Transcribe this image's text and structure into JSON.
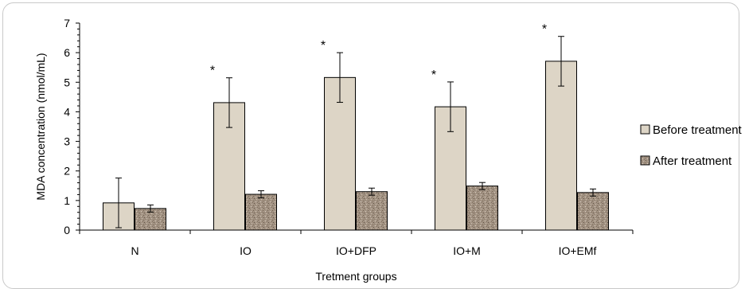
{
  "chart_data": {
    "type": "bar",
    "xlabel": "Tretment groups",
    "ylabel": "MDA concentration (nmol/mL)",
    "ylim": [
      0,
      7
    ],
    "yticks": [
      0,
      1,
      2,
      3,
      4,
      5,
      6,
      7
    ],
    "categories": [
      "N",
      "IO",
      "IO+DFP",
      "IO+M",
      "IO+EMf"
    ],
    "series": [
      {
        "name": "Before treatment",
        "color": "#ddd5c6",
        "values": [
          0.92,
          4.31,
          5.16,
          4.17,
          5.71
        ],
        "errors": [
          0.84,
          0.84,
          0.84,
          0.84,
          0.84
        ],
        "annotations": [
          "",
          "*",
          "*",
          "*",
          "*"
        ]
      },
      {
        "name": "After treatment",
        "color": "#a39383",
        "pattern": "speckled",
        "values": [
          0.73,
          1.21,
          1.3,
          1.49,
          1.27
        ],
        "errors": [
          0.12,
          0.12,
          0.12,
          0.12,
          0.12
        ],
        "annotations": [
          "",
          "",
          "",
          "",
          ""
        ]
      }
    ],
    "legend": "right",
    "grid": false
  }
}
